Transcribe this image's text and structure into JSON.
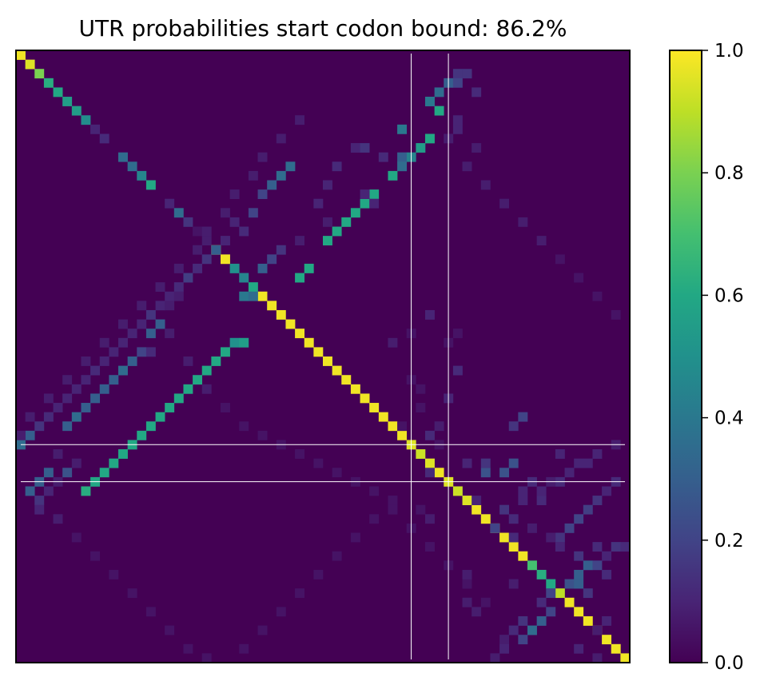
{
  "chart_data": {
    "type": "heatmap",
    "title": "UTR probabilities start codon bound: 86.2%",
    "xlabel": "",
    "ylabel": "",
    "x_ticks": "none",
    "y_ticks": "none",
    "n": 66,
    "background_value": 0.0,
    "colormap": "viridis",
    "colorbar": {
      "range": [
        0,
        1
      ],
      "ticks": [
        {
          "value": 0.0,
          "label": "0.0"
        },
        {
          "value": 0.2,
          "label": "0.2"
        },
        {
          "value": 0.4,
          "label": "0.4"
        },
        {
          "value": 0.6,
          "label": "0.6"
        },
        {
          "value": 0.8,
          "label": "0.8"
        },
        {
          "value": 1.0,
          "label": "1.0"
        }
      ]
    },
    "start_codon_lines": [
      42,
      46
    ],
    "cells": [
      [
        0,
        0,
        0.98
      ],
      [
        1,
        1,
        0.95
      ],
      [
        2,
        2,
        0.8
      ],
      [
        3,
        3,
        0.62
      ],
      [
        4,
        4,
        0.6
      ],
      [
        5,
        5,
        0.55
      ],
      [
        6,
        6,
        0.55
      ],
      [
        7,
        7,
        0.48
      ],
      [
        8,
        8,
        0.1
      ],
      [
        9,
        9,
        0.12
      ],
      [
        11,
        11,
        0.35
      ],
      [
        12,
        12,
        0.35
      ],
      [
        13,
        13,
        0.45
      ],
      [
        14,
        14,
        0.6
      ],
      [
        16,
        16,
        0.1
      ],
      [
        17,
        17,
        0.35
      ],
      [
        18,
        18,
        0.15
      ],
      [
        19,
        19,
        0.05
      ],
      [
        20,
        20,
        0.08
      ],
      [
        21,
        21,
        0.98
      ],
      [
        22,
        22,
        0.98
      ],
      [
        23,
        23,
        0.5
      ],
      [
        24,
        24,
        0.45
      ],
      [
        25,
        25,
        0.6
      ],
      [
        26,
        26,
        0.98
      ],
      [
        27,
        27,
        0.98
      ],
      [
        28,
        28,
        0.98
      ],
      [
        29,
        29,
        0.98
      ],
      [
        30,
        30,
        0.98
      ],
      [
        31,
        31,
        0.98
      ],
      [
        32,
        32,
        0.98
      ],
      [
        33,
        33,
        0.98
      ],
      [
        34,
        34,
        0.98
      ],
      [
        35,
        35,
        0.98
      ],
      [
        36,
        36,
        0.98
      ],
      [
        37,
        37,
        0.98
      ],
      [
        38,
        38,
        0.98
      ],
      [
        39,
        39,
        0.98
      ],
      [
        40,
        40,
        0.98
      ],
      [
        41,
        41,
        0.98
      ],
      [
        42,
        42,
        0.95
      ],
      [
        43,
        43,
        0.92
      ],
      [
        44,
        44,
        0.95
      ],
      [
        45,
        45,
        0.98
      ],
      [
        46,
        46,
        0.95
      ],
      [
        47,
        47,
        0.92
      ],
      [
        48,
        48,
        0.95
      ],
      [
        49,
        49,
        0.98
      ],
      [
        50,
        50,
        0.98
      ],
      [
        51,
        51,
        0.98
      ],
      [
        52,
        52,
        0.98
      ],
      [
        53,
        53,
        0.98
      ],
      [
        54,
        54,
        0.98
      ],
      [
        55,
        55,
        0.7
      ],
      [
        56,
        56,
        0.62
      ],
      [
        57,
        57,
        0.6
      ],
      [
        58,
        58,
        0.9
      ],
      [
        59,
        59,
        0.98
      ],
      [
        60,
        60,
        0.98
      ],
      [
        61,
        61,
        0.98
      ],
      [
        62,
        62,
        0.98
      ],
      [
        63,
        63,
        0.98
      ],
      [
        64,
        64,
        0.98
      ],
      [
        65,
        65,
        0.98
      ],
      [
        3,
        46,
        0.3
      ],
      [
        4,
        45,
        0.35
      ],
      [
        5,
        44,
        0.4
      ],
      [
        6,
        45,
        0.6
      ],
      [
        8,
        41,
        0.4
      ],
      [
        9,
        44,
        0.6
      ],
      [
        10,
        43,
        0.55
      ],
      [
        11,
        42,
        0.45
      ],
      [
        11,
        41,
        0.3
      ],
      [
        12,
        41,
        0.35
      ],
      [
        13,
        40,
        0.6
      ],
      [
        15,
        38,
        0.6
      ],
      [
        16,
        37,
        0.6
      ],
      [
        17,
        36,
        0.6
      ],
      [
        18,
        35,
        0.6
      ],
      [
        19,
        34,
        0.6
      ],
      [
        20,
        33,
        0.6
      ],
      [
        23,
        31,
        0.6
      ],
      [
        24,
        30,
        0.6
      ],
      [
        26,
        24,
        0.4
      ],
      [
        26,
        25,
        0.35
      ],
      [
        31,
        23,
        0.5
      ],
      [
        31,
        24,
        0.55
      ],
      [
        32,
        22,
        0.6
      ],
      [
        33,
        21,
        0.6
      ],
      [
        34,
        20,
        0.6
      ],
      [
        35,
        19,
        0.6
      ],
      [
        36,
        18,
        0.6
      ],
      [
        37,
        17,
        0.6
      ],
      [
        38,
        16,
        0.6
      ],
      [
        39,
        15,
        0.6
      ],
      [
        40,
        14,
        0.6
      ],
      [
        41,
        13,
        0.6
      ],
      [
        42,
        12,
        0.6
      ],
      [
        43,
        11,
        0.6
      ],
      [
        44,
        10,
        0.6
      ],
      [
        45,
        9,
        0.6
      ],
      [
        46,
        8,
        0.6
      ],
      [
        47,
        7,
        0.62
      ],
      [
        12,
        29,
        0.35
      ],
      [
        13,
        28,
        0.35
      ],
      [
        14,
        27,
        0.3
      ],
      [
        15,
        26,
        0.2
      ],
      [
        17,
        25,
        0.2
      ],
      [
        18,
        23,
        0.1
      ],
      [
        19,
        24,
        0.12
      ],
      [
        20,
        22,
        0.1
      ],
      [
        21,
        21,
        0.3
      ],
      [
        22,
        20,
        0.15
      ],
      [
        23,
        19,
        0.12
      ],
      [
        24,
        18,
        0.18
      ],
      [
        25,
        17,
        0.12
      ],
      [
        26,
        16,
        0.1
      ],
      [
        27,
        15,
        0.1
      ],
      [
        28,
        14,
        0.15
      ],
      [
        29,
        13,
        0.1
      ],
      [
        30,
        12,
        0.1
      ],
      [
        31,
        11,
        0.1
      ],
      [
        32,
        10,
        0.1
      ],
      [
        33,
        9,
        0.1
      ],
      [
        34,
        8,
        0.12
      ],
      [
        35,
        7,
        0.1
      ],
      [
        36,
        6,
        0.1
      ],
      [
        37,
        5,
        0.1
      ],
      [
        38,
        4,
        0.1
      ],
      [
        39,
        3,
        0.12
      ],
      [
        40,
        2,
        0.15
      ],
      [
        41,
        1,
        0.3
      ],
      [
        42,
        0,
        0.35
      ],
      [
        21,
        28,
        0.15
      ],
      [
        22,
        27,
        0.2
      ],
      [
        23,
        26,
        0.3
      ],
      [
        29,
        15,
        0.3
      ],
      [
        30,
        14,
        0.3
      ],
      [
        32,
        13,
        0.2
      ],
      [
        33,
        12,
        0.3
      ],
      [
        34,
        11,
        0.35
      ],
      [
        35,
        10,
        0.3
      ],
      [
        36,
        9,
        0.3
      ],
      [
        37,
        8,
        0.3
      ],
      [
        38,
        7,
        0.3
      ],
      [
        39,
        6,
        0.35
      ],
      [
        40,
        5,
        0.3
      ],
      [
        45,
        3,
        0.3
      ],
      [
        46,
        2,
        0.3
      ],
      [
        47,
        1,
        0.3
      ],
      [
        48,
        2,
        0.15
      ],
      [
        49,
        2,
        0.1
      ],
      [
        45,
        5,
        0.25
      ],
      [
        2,
        47,
        0.15
      ],
      [
        2,
        48,
        0.15
      ],
      [
        3,
        47,
        0.2
      ],
      [
        4,
        49,
        0.12
      ],
      [
        8,
        47,
        0.1
      ],
      [
        10,
        36,
        0.1
      ],
      [
        12,
        34,
        0.12
      ],
      [
        14,
        33,
        0.1
      ],
      [
        16,
        32,
        0.1
      ],
      [
        30,
        47,
        0.05
      ],
      [
        31,
        46,
        0.05
      ],
      [
        34,
        47,
        0.12
      ],
      [
        37,
        46,
        0.1
      ],
      [
        40,
        45,
        0.08
      ],
      [
        41,
        44,
        0.12
      ],
      [
        42,
        45,
        0.05
      ],
      [
        44,
        48,
        0.1
      ],
      [
        45,
        44,
        0.12
      ],
      [
        48,
        49,
        0.1
      ],
      [
        51,
        51,
        0.2
      ],
      [
        52,
        53,
        0.12
      ],
      [
        49,
        52,
        0.15
      ],
      [
        50,
        53,
        0.12
      ],
      [
        48,
        54,
        0.1
      ],
      [
        51,
        55,
        0.08
      ],
      [
        44,
        53,
        0.25
      ],
      [
        45,
        52,
        0.25
      ],
      [
        46,
        55,
        0.12
      ],
      [
        47,
        54,
        0.1
      ],
      [
        48,
        56,
        0.12
      ],
      [
        53,
        62,
        0.12
      ],
      [
        54,
        63,
        0.1
      ],
      [
        55,
        61,
        0.3
      ],
      [
        56,
        60,
        0.3
      ],
      [
        57,
        59,
        0.25
      ],
      [
        58,
        57,
        0.2
      ],
      [
        59,
        56,
        0.12
      ],
      [
        61,
        54,
        0.15
      ],
      [
        62,
        53,
        0.12
      ],
      [
        63,
        52,
        0.08
      ],
      [
        52,
        58,
        0.15
      ],
      [
        51,
        59,
        0.2
      ],
      [
        50,
        60,
        0.2
      ],
      [
        49,
        61,
        0.18
      ],
      [
        48,
        62,
        0.15
      ],
      [
        47,
        63,
        0.1
      ],
      [
        46,
        64,
        0.12
      ],
      [
        53,
        64,
        0.15
      ],
      [
        53,
        65,
        0.12
      ],
      [
        39,
        54,
        0.2
      ],
      [
        40,
        53,
        0.15
      ],
      [
        45,
        50,
        0.25
      ],
      [
        44,
        50,
        0.15
      ],
      [
        43,
        58,
        0.1
      ],
      [
        44,
        61,
        0.1
      ],
      [
        48,
        40,
        0.05
      ],
      [
        50,
        38,
        0.05
      ],
      [
        52,
        36,
        0.05
      ],
      [
        54,
        34,
        0.05
      ],
      [
        56,
        32,
        0.05
      ],
      [
        58,
        30,
        0.05
      ],
      [
        60,
        28,
        0.05
      ],
      [
        62,
        26,
        0.05
      ],
      [
        64,
        24,
        0.05
      ],
      [
        57,
        60,
        0.3
      ],
      [
        58,
        61,
        0.15
      ],
      [
        55,
        62,
        0.2
      ],
      [
        56,
        63,
        0.12
      ],
      [
        54,
        60,
        0.15
      ],
      [
        62,
        55,
        0.35
      ],
      [
        61,
        56,
        0.3
      ],
      [
        60,
        57,
        0.2
      ],
      [
        63,
        54,
        0.2
      ],
      [
        64,
        52,
        0.1
      ],
      [
        65,
        51,
        0.08
      ],
      [
        49,
        43,
        0.05
      ],
      [
        50,
        44,
        0.08
      ],
      [
        38,
        43,
        0.05
      ],
      [
        40,
        41,
        0.05
      ],
      [
        30,
        42,
        0.05
      ],
      [
        31,
        40,
        0.08
      ],
      [
        28,
        44,
        0.1
      ],
      [
        35,
        42,
        0.05
      ],
      [
        36,
        43,
        0.05
      ],
      [
        10,
        37,
        0.15
      ],
      [
        11,
        39,
        0.12
      ],
      [
        15,
        37,
        0.1
      ],
      [
        18,
        33,
        0.08
      ],
      [
        16,
        38,
        0.1
      ],
      [
        20,
        30,
        0.08
      ],
      [
        26,
        17,
        0.08
      ],
      [
        27,
        16,
        0.08
      ],
      [
        30,
        16,
        0.08
      ],
      [
        32,
        14,
        0.12
      ],
      [
        33,
        18,
        0.08
      ],
      [
        36,
        20,
        0.08
      ],
      [
        38,
        22,
        0.05
      ],
      [
        40,
        24,
        0.05
      ],
      [
        41,
        26,
        0.05
      ],
      [
        42,
        28,
        0.05
      ],
      [
        43,
        30,
        0.05
      ],
      [
        44,
        32,
        0.05
      ],
      [
        45,
        34,
        0.05
      ],
      [
        46,
        36,
        0.05
      ],
      [
        47,
        38,
        0.05
      ],
      [
        49,
        40,
        0.05
      ],
      [
        51,
        42,
        0.05
      ],
      [
        53,
        44,
        0.05
      ],
      [
        55,
        46,
        0.05
      ],
      [
        57,
        48,
        0.05
      ],
      [
        59,
        50,
        0.05
      ],
      [
        5,
        44,
        0.4
      ],
      [
        7,
        47,
        0.1
      ],
      [
        9,
        46,
        0.08
      ],
      [
        10,
        49,
        0.08
      ],
      [
        12,
        48,
        0.08
      ],
      [
        14,
        50,
        0.08
      ],
      [
        16,
        52,
        0.08
      ],
      [
        18,
        54,
        0.08
      ],
      [
        20,
        56,
        0.08
      ],
      [
        22,
        58,
        0.05
      ],
      [
        24,
        60,
        0.05
      ],
      [
        26,
        62,
        0.05
      ],
      [
        28,
        64,
        0.05
      ],
      [
        7,
        30,
        0.08
      ],
      [
        9,
        28,
        0.08
      ],
      [
        11,
        26,
        0.08
      ],
      [
        13,
        25,
        0.08
      ],
      [
        15,
        23,
        0.08
      ],
      [
        17,
        22,
        0.08
      ],
      [
        19,
        20,
        0.08
      ],
      [
        21,
        19,
        0.08
      ],
      [
        23,
        17,
        0.08
      ],
      [
        25,
        15,
        0.08
      ],
      [
        27,
        13,
        0.08
      ],
      [
        29,
        11,
        0.08
      ],
      [
        31,
        9,
        0.08
      ],
      [
        33,
        7,
        0.08
      ],
      [
        35,
        5,
        0.08
      ],
      [
        37,
        3,
        0.08
      ],
      [
        39,
        1,
        0.08
      ],
      [
        41,
        0,
        0.08
      ],
      [
        43,
        4,
        0.08
      ],
      [
        44,
        6,
        0.08
      ],
      [
        46,
        4,
        0.08
      ],
      [
        47,
        3,
        0.1
      ],
      [
        50,
        4,
        0.08
      ],
      [
        52,
        6,
        0.05
      ],
      [
        54,
        8,
        0.05
      ],
      [
        56,
        10,
        0.05
      ],
      [
        58,
        12,
        0.05
      ],
      [
        60,
        14,
        0.05
      ],
      [
        62,
        16,
        0.05
      ],
      [
        64,
        18,
        0.05
      ],
      [
        65,
        20,
        0.05
      ],
      [
        46,
        58,
        0.12
      ],
      [
        47,
        56,
        0.1
      ],
      [
        46,
        57,
        0.08
      ],
      [
        45,
        59,
        0.1
      ],
      [
        44,
        60,
        0.1
      ],
      [
        43,
        62,
        0.1
      ],
      [
        42,
        64,
        0.08
      ],
      [
        53,
        58,
        0.1
      ],
      [
        52,
        57,
        0.08
      ],
      [
        60,
        49,
        0.08
      ],
      [
        59,
        48,
        0.08
      ],
      [
        64,
        60,
        0.1
      ],
      [
        65,
        62,
        0.08
      ],
      [
        56,
        48,
        0.08
      ],
      [
        57,
        53,
        0.08
      ],
      [
        61,
        63,
        0.1
      ],
      [
        62,
        62,
        0.08
      ]
    ]
  }
}
